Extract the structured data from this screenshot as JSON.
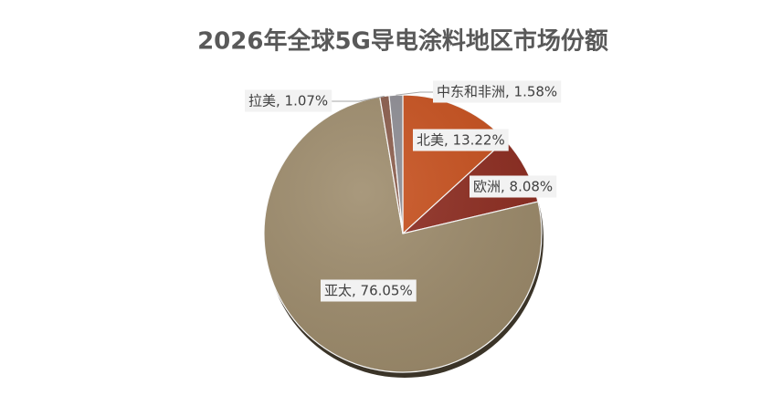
{
  "chart_data": {
    "type": "pie",
    "title": "2026年全球5G导电涂料地区市场份额",
    "categories": [
      "北美",
      "欧洲",
      "亚太",
      "拉美",
      "中东和非洲"
    ],
    "values": [
      13.22,
      8.08,
      76.05,
      1.07,
      1.58
    ],
    "value_labels": [
      "北美, 13.22%",
      "欧洲, 8.08%",
      "亚太, 76.05%",
      "拉美, 1.07%",
      "中东和非洲, 1.58%"
    ],
    "colors": [
      "#c8501d",
      "#8e2c20",
      "#9d8b6b",
      "#8a5b4a",
      "#8d8c93"
    ]
  }
}
